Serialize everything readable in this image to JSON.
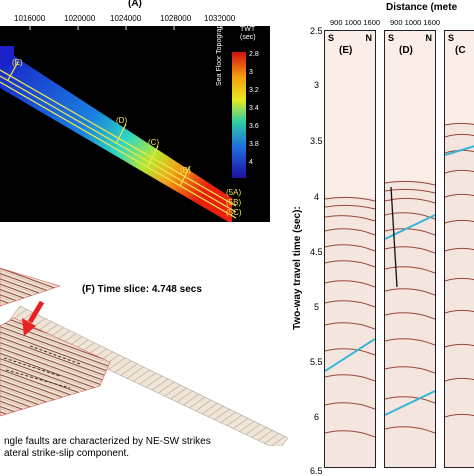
{
  "panel_a": {
    "label": "(A)",
    "x_ticks": [
      "1016000",
      "1020000",
      "1024000",
      "1028000",
      "1032000"
    ],
    "colorbar_title": "TWT\n(sec)",
    "colorbar_label": "Sea Floor Topography",
    "colorbar_ticks": [
      "2.8",
      "3",
      "3.2",
      "3.4",
      "3.6",
      "3.8",
      "4"
    ],
    "line_labels": [
      "(E)",
      "(D)",
      "(C)",
      "(B)",
      "(5A)",
      "(5B)",
      "(5C)"
    ]
  },
  "panel_f": {
    "title": "(F) Time slice: 4.748 secs",
    "caption_line1": "ngle faults are characterized by NE-SW strikes",
    "caption_line2": "ateral strike-slip component."
  },
  "right": {
    "title": "Distance (mete",
    "y_label": "Two-way travel time (sec):",
    "y_ticks": [
      "2.5",
      "3",
      "3.5",
      "4",
      "4.5",
      "5",
      "5.5",
      "6",
      "6.5"
    ],
    "panel_e": {
      "label": "(E)",
      "dist_ticks": "900 1000 1600",
      "dir_left": "S",
      "dir_right": "N"
    },
    "panel_d": {
      "label": "(D)",
      "dist_ticks": "900 1000 1600",
      "dir_left": "S",
      "dir_right": "N"
    },
    "panel_c": {
      "label": "(C",
      "dir_left": "S"
    }
  },
  "colors": {
    "water_reflector": "#35b6d8",
    "fault_line": "#111111",
    "arrow": "#e82222"
  }
}
